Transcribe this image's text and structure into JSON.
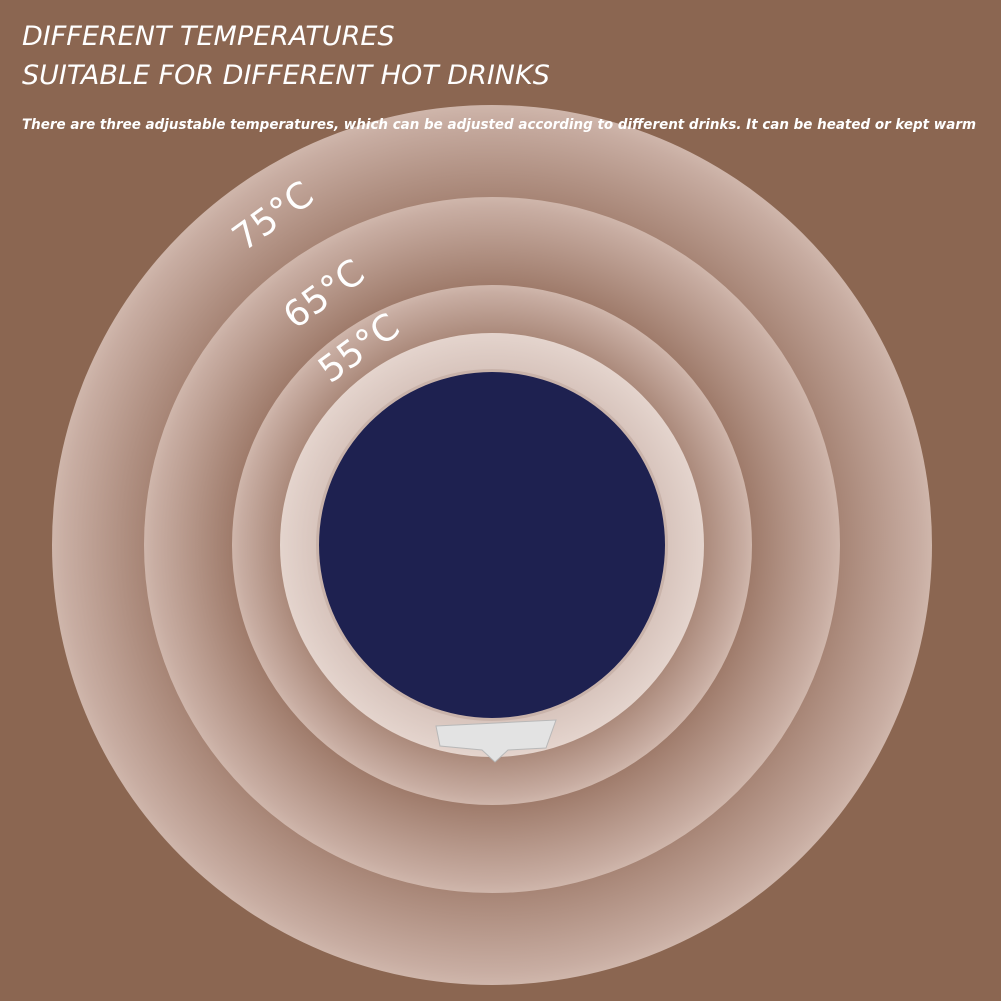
{
  "header": {
    "title_lines": [
      "DIFFERENT TEMPERATURES",
      "SUITABLE FOR DIFFERENT HOT DRINKS"
    ],
    "description": "There are three adjustable temperatures, which can be adjusted according to different drinks. It can be heated or kept warm"
  },
  "temperatures": [
    {
      "label": "75°C"
    },
    {
      "label": "65°C"
    },
    {
      "label": "55°C"
    }
  ]
}
